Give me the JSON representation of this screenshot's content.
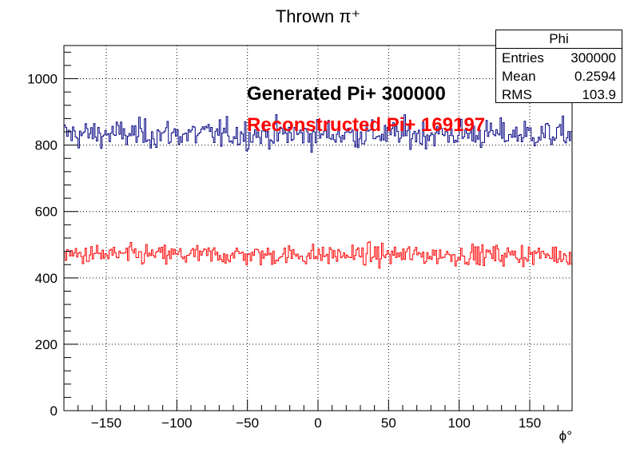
{
  "chart_data": {
    "type": "histogram",
    "title": "Thrown π⁺",
    "xlabel": "ϕ°",
    "ylabel": "",
    "xlim": [
      -180,
      180
    ],
    "ylim": [
      0,
      1100
    ],
    "grid": true,
    "x_ticks": [
      -150,
      -100,
      -50,
      0,
      50,
      100,
      150
    ],
    "x_tick_labels": [
      "−150",
      "−100",
      "−50",
      "0",
      "50",
      "100",
      "150"
    ],
    "y_ticks": [
      0,
      200,
      400,
      600,
      800,
      1000
    ],
    "y_tick_labels": [
      "0",
      "200",
      "400",
      "600",
      "800",
      "1000"
    ],
    "bins": 360,
    "series": [
      {
        "color": "#000080",
        "level": 833,
        "spread": 30,
        "min": 745,
        "max": 915
      },
      {
        "color": "#ff0000",
        "level": 469,
        "spread": 22,
        "min": 402,
        "max": 548
      }
    ],
    "annotations": [
      {
        "text": "Generated Pi+ 300000",
        "color": "#000000"
      },
      {
        "text": "Reconstructed Pi+ 169197",
        "color": "#ff0000"
      }
    ]
  },
  "stats_box": {
    "title": "Phi",
    "rows": [
      {
        "label": "Entries",
        "value": "300000"
      },
      {
        "label": "Mean",
        "value": "0.2594"
      },
      {
        "label": "RMS",
        "value": "103.9"
      }
    ]
  }
}
